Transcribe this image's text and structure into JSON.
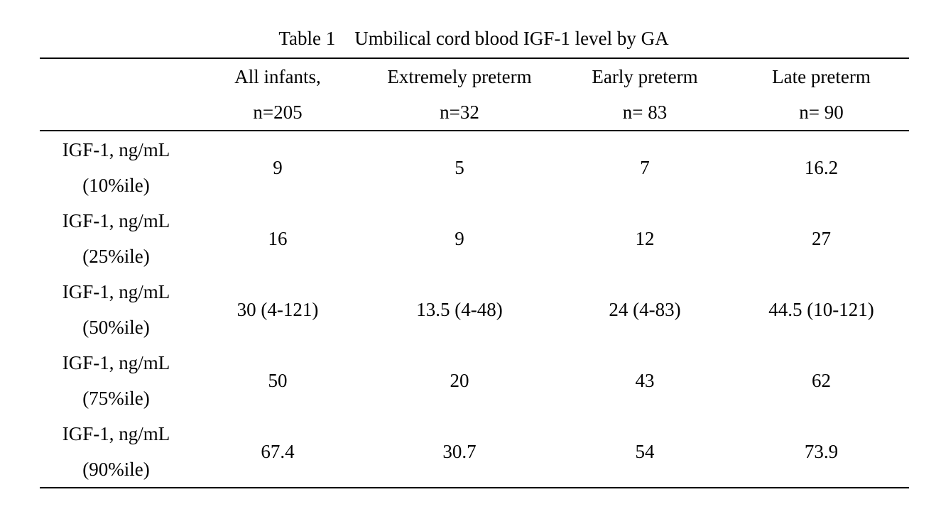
{
  "caption": {
    "label": "Table 1",
    "title": "Umbilical cord blood IGF-1 level by GA"
  },
  "columns": [
    {
      "line1": "",
      "line2": ""
    },
    {
      "line1": "All infants,",
      "line2": "n=205"
    },
    {
      "line1": "Extremely preterm",
      "line2": "n=32"
    },
    {
      "line1": "Early preterm",
      "line2": "n= 83"
    },
    {
      "line1": "Late preterm",
      "line2": "n= 90"
    }
  ],
  "rows": [
    {
      "label1": "IGF-1, ng/mL",
      "label2": "(10%ile)",
      "values": [
        "9",
        "5",
        "7",
        "16.2"
      ]
    },
    {
      "label1": "IGF-1, ng/mL",
      "label2": "(25%ile)",
      "values": [
        "16",
        "9",
        "12",
        "27"
      ]
    },
    {
      "label1": "IGF-1, ng/mL",
      "label2": "(50%ile)",
      "values": [
        "30 (4-121)",
        "13.5 (4-48)",
        "24 (4-83)",
        "44.5 (10-121)"
      ]
    },
    {
      "label1": "IGF-1, ng/mL",
      "label2": "(75%ile)",
      "values": [
        "50",
        "20",
        "43",
        "62"
      ]
    },
    {
      "label1": "IGF-1, ng/mL",
      "label2": "(90%ile)",
      "values": [
        "67.4",
        "30.7",
        "54",
        "73.9"
      ]
    }
  ]
}
